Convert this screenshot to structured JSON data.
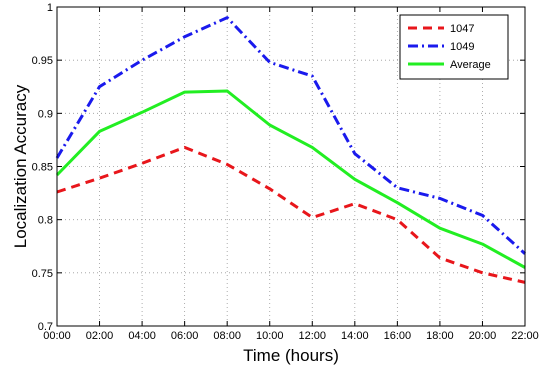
{
  "chart_data": {
    "type": "line",
    "xlabel": "Time (hours)",
    "ylabel": "Localization Accuracy",
    "x": [
      "00:00",
      "02:00",
      "04:00",
      "06:00",
      "08:00",
      "10:00",
      "12:00",
      "14:00",
      "16:00",
      "18:00",
      "20:00",
      "22:00"
    ],
    "ylim": [
      0.7,
      1.0
    ],
    "yticks": [
      "0.7",
      "0.75",
      "0.8",
      "0.85",
      "0.9",
      "0.95",
      "1"
    ],
    "grid": true,
    "legend_position": "top-right",
    "series": [
      {
        "name": "1047",
        "color": "#e8161b",
        "dash": "dashed",
        "values": [
          0.826,
          0.839,
          0.853,
          0.868,
          0.852,
          0.829,
          0.802,
          0.815,
          0.8,
          0.764,
          0.75,
          0.741
        ]
      },
      {
        "name": "1049",
        "color": "#1a1aed",
        "dash": "dashdot",
        "values": [
          0.858,
          0.925,
          0.95,
          0.972,
          0.99,
          0.948,
          0.935,
          0.862,
          0.83,
          0.82,
          0.804,
          0.768
        ]
      },
      {
        "name": "Average",
        "color": "#22ee22",
        "dash": "solid",
        "values": [
          0.842,
          0.883,
          0.901,
          0.92,
          0.921,
          0.889,
          0.868,
          0.838,
          0.816,
          0.792,
          0.777,
          0.755
        ]
      }
    ]
  }
}
